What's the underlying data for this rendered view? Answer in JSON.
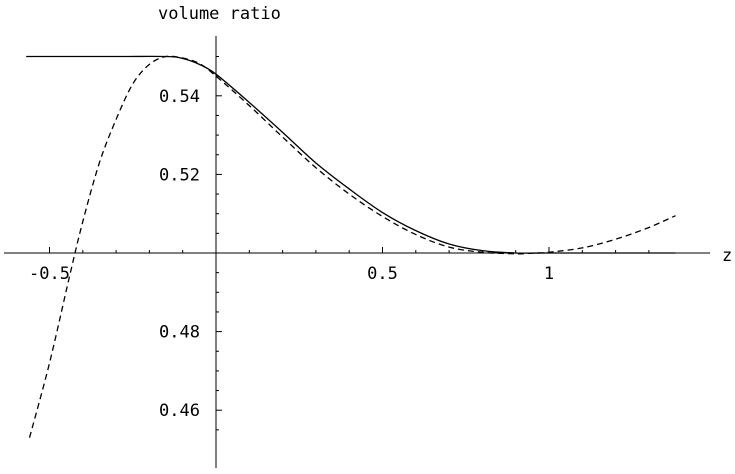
{
  "chart_data": {
    "type": "line",
    "title": "",
    "ylabel": "volume ratio",
    "xlabel": "z",
    "xlim": [
      -0.57,
      1.38
    ],
    "ylim": [
      0.453,
      0.552
    ],
    "x_ticks": [
      -0.5,
      0.5,
      1
    ],
    "x_tick_labels": [
      "-0.5",
      "0.5",
      "1"
    ],
    "y_ticks": [
      0.46,
      0.48,
      0.52,
      0.54
    ],
    "y_tick_labels": [
      "0.46",
      "0.48",
      "0.52",
      "0.54"
    ],
    "axis_cross_y": 0.5,
    "grid": false,
    "series": [
      {
        "style": "solid",
        "color": "#000000",
        "points": [
          [
            -0.57,
            0.55
          ],
          [
            -0.3,
            0.55
          ],
          [
            -0.15,
            0.55
          ],
          [
            -0.1,
            0.5495
          ],
          [
            -0.05,
            0.548
          ],
          [
            0.0,
            0.5455
          ],
          [
            0.1,
            0.5383
          ],
          [
            0.2,
            0.5307
          ],
          [
            0.3,
            0.5229
          ],
          [
            0.4,
            0.5163
          ],
          [
            0.5,
            0.5103
          ],
          [
            0.6,
            0.5057
          ],
          [
            0.7,
            0.5023
          ],
          [
            0.8,
            0.5006
          ],
          [
            0.9,
            0.5
          ],
          [
            1.0,
            0.5
          ],
          [
            1.1,
            0.5
          ],
          [
            1.2,
            0.5
          ],
          [
            1.3,
            0.5
          ],
          [
            1.38,
            0.5
          ]
        ]
      },
      {
        "style": "dashed",
        "color": "#000000",
        "points": [
          [
            -0.56,
            0.453
          ],
          [
            -0.5,
            0.472
          ],
          [
            -0.44,
            0.494
          ],
          [
            -0.4,
            0.508
          ],
          [
            -0.35,
            0.523
          ],
          [
            -0.3,
            0.534
          ],
          [
            -0.25,
            0.543
          ],
          [
            -0.2,
            0.548
          ],
          [
            -0.15,
            0.55
          ],
          [
            -0.1,
            0.5496
          ],
          [
            -0.05,
            0.5482
          ],
          [
            0.0,
            0.545
          ],
          [
            0.1,
            0.5375
          ],
          [
            0.2,
            0.5295
          ],
          [
            0.3,
            0.5217
          ],
          [
            0.4,
            0.515
          ],
          [
            0.5,
            0.5093
          ],
          [
            0.6,
            0.5047
          ],
          [
            0.7,
            0.5015
          ],
          [
            0.8,
            0.5002
          ],
          [
            0.9,
            0.4998
          ],
          [
            0.96,
            0.5
          ],
          [
            1.0,
            0.5002
          ],
          [
            1.1,
            0.5013
          ],
          [
            1.2,
            0.5035
          ],
          [
            1.3,
            0.5065
          ],
          [
            1.38,
            0.5095
          ]
        ]
      }
    ]
  }
}
